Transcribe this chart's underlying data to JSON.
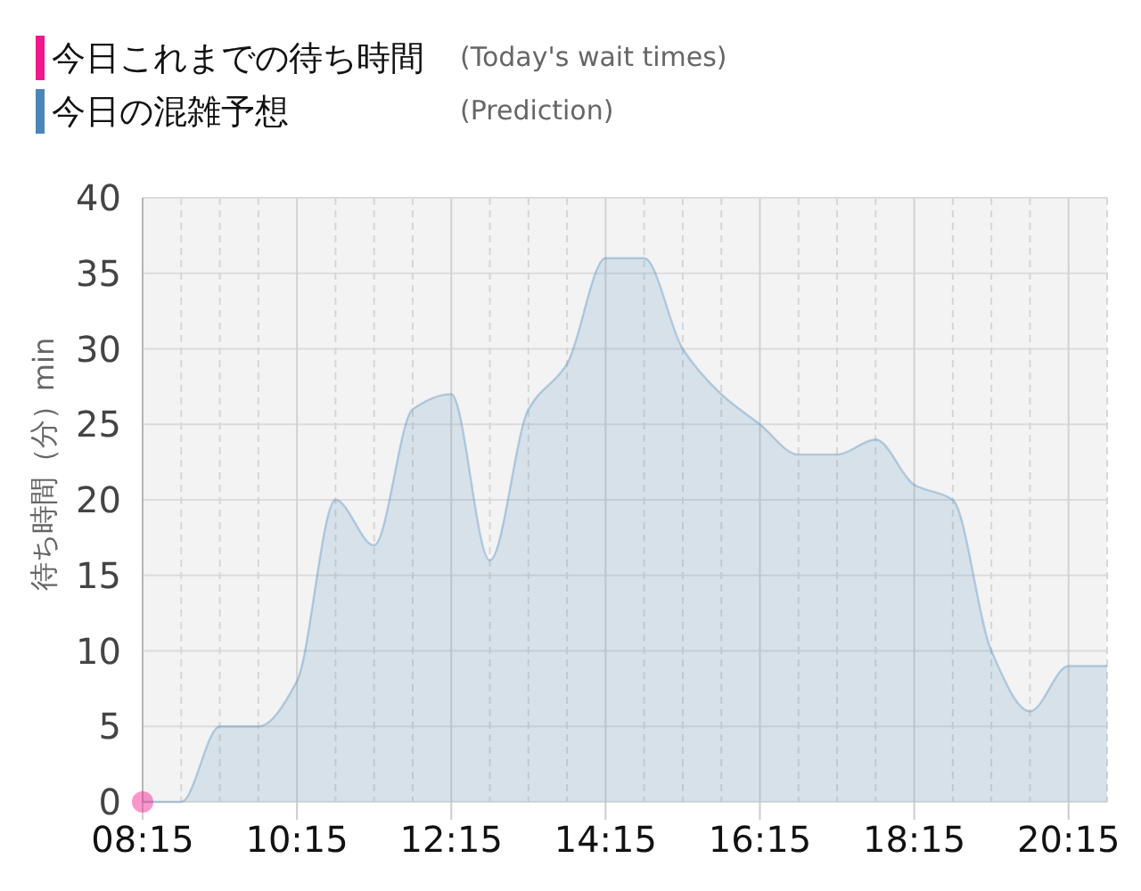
{
  "chart_data": {
    "type": "area",
    "ylabel": "待ち時間（分）min",
    "x": [
      8.25,
      8.75,
      9.25,
      9.75,
      10.25,
      10.75,
      11.25,
      11.75,
      12.25,
      12.75,
      13.25,
      13.75,
      14.25,
      14.75,
      15.25,
      15.75,
      16.25,
      16.75,
      17.25,
      17.75,
      18.25,
      18.75,
      19.25,
      19.75,
      20.25,
      20.75
    ],
    "series": [
      {
        "name": "今日これまでの待ち時間",
        "type": "scatter",
        "marker": "circle",
        "color": "#f0188c",
        "x": [
          8.25
        ],
        "values": [
          0
        ]
      },
      {
        "name": "今日の混雑予想",
        "color": "#4a86b9",
        "values": [
          0,
          0,
          5,
          5,
          8,
          20,
          17,
          26,
          27,
          16,
          26,
          29,
          36,
          36,
          30,
          27,
          25,
          23,
          23,
          24,
          21,
          20,
          10,
          6,
          9,
          9
        ]
      }
    ],
    "xlim": [
      8.25,
      20.75
    ],
    "xticks": [
      {
        "value": 8.25,
        "label": "08:15"
      },
      {
        "value": 8.75,
        "label": null
      },
      {
        "value": 9.25,
        "label": null
      },
      {
        "value": 9.75,
        "label": null
      },
      {
        "value": 10.25,
        "label": "10:15"
      },
      {
        "value": 10.75,
        "label": null
      },
      {
        "value": 11.25,
        "label": null
      },
      {
        "value": 11.75,
        "label": null
      },
      {
        "value": 12.25,
        "label": "12:15"
      },
      {
        "value": 12.75,
        "label": null
      },
      {
        "value": 13.25,
        "label": null
      },
      {
        "value": 13.75,
        "label": null
      },
      {
        "value": 14.25,
        "label": "14:15"
      },
      {
        "value": 14.75,
        "label": null
      },
      {
        "value": 15.25,
        "label": null
      },
      {
        "value": 15.75,
        "label": null
      },
      {
        "value": 16.25,
        "label": "16:15"
      },
      {
        "value": 16.75,
        "label": null
      },
      {
        "value": 17.25,
        "label": null
      },
      {
        "value": 17.75,
        "label": null
      },
      {
        "value": 18.25,
        "label": "18:15"
      },
      {
        "value": 18.75,
        "label": null
      },
      {
        "value": 19.25,
        "label": null
      },
      {
        "value": 19.75,
        "label": null
      },
      {
        "value": 20.25,
        "label": "20:15"
      },
      {
        "value": 20.75,
        "label": null
      }
    ],
    "ylim": [
      0,
      40
    ],
    "yticks": [
      0,
      5,
      10,
      15,
      20,
      25,
      30,
      35,
      40
    ],
    "grid": true,
    "legend": "top left",
    "annotations": [
      "(Today's wait times)",
      "(Prediction)"
    ]
  }
}
